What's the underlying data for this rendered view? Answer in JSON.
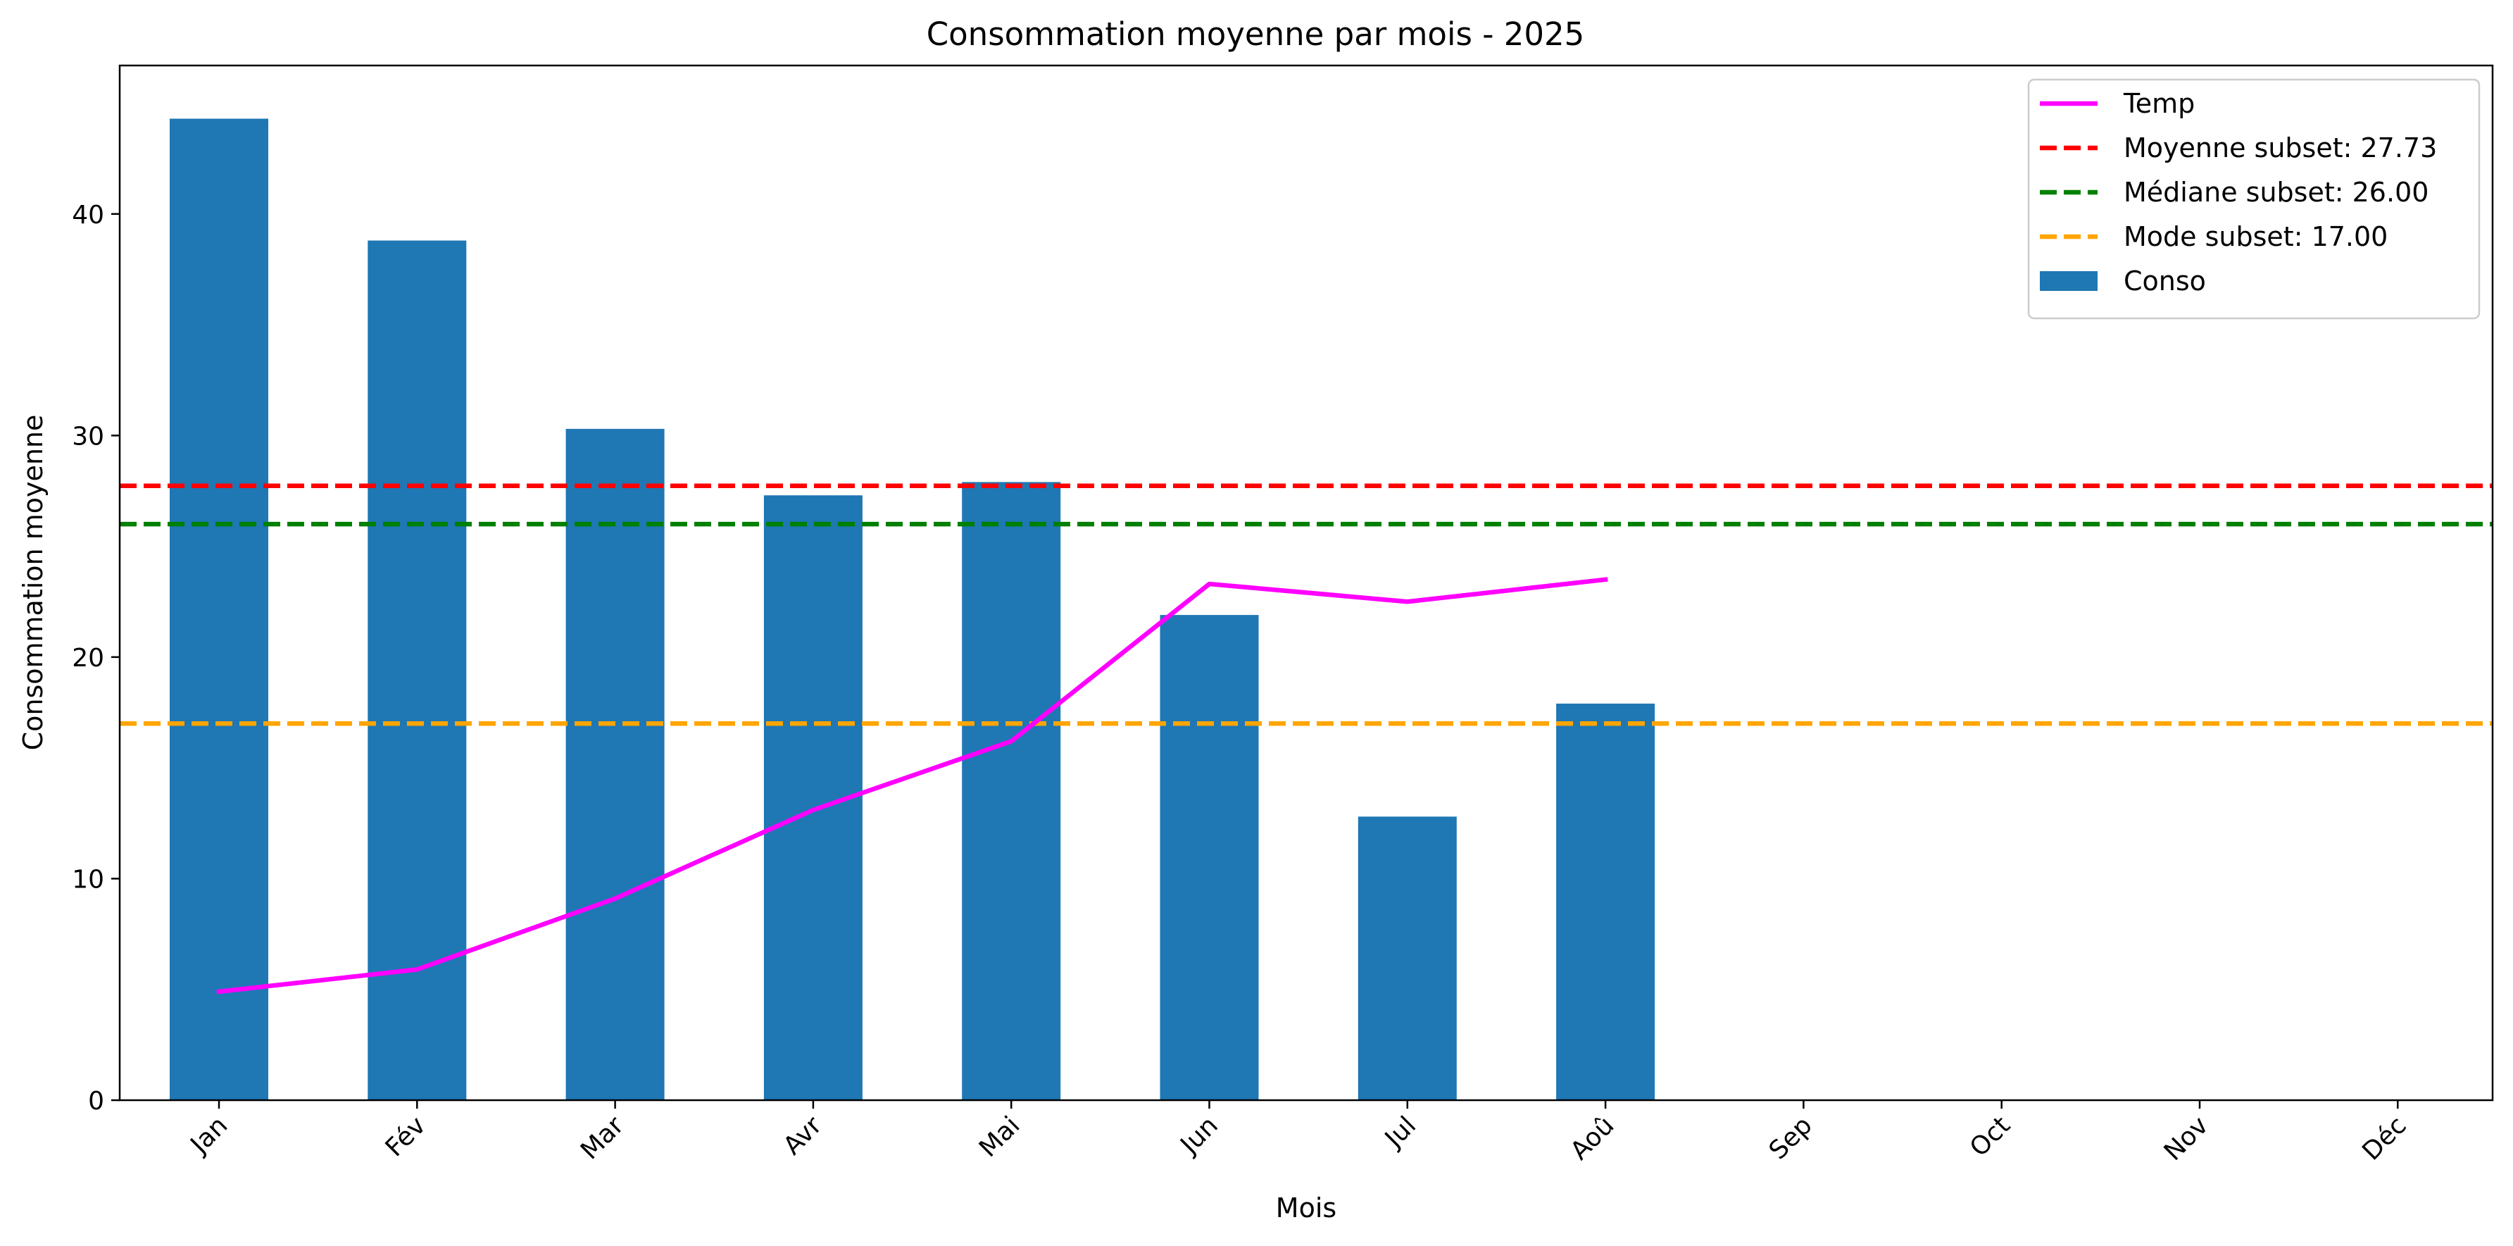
{
  "chart_data": {
    "type": "bar",
    "title": "Consommation moyenne par mois - 2025",
    "xlabel": "Mois",
    "ylabel": "Consommation moyenne",
    "categories": [
      "Jan",
      "Fév",
      "Mar",
      "Avr",
      "Mai",
      "Jun",
      "Jul",
      "Aoû",
      "Sep",
      "Oct",
      "Nov",
      "Déc"
    ],
    "ylim": [
      0,
      46.7
    ],
    "yticks": [
      0,
      10,
      20,
      30,
      40
    ],
    "grid": false,
    "legend_position": "top-right",
    "series": [
      {
        "name": "Conso",
        "type": "bar",
        "color": "#1f77b4",
        "values": [
          44.3,
          38.8,
          30.3,
          27.3,
          27.9,
          21.9,
          12.8,
          17.9,
          null,
          null,
          null,
          null
        ]
      },
      {
        "name": "Temp",
        "type": "line",
        "color": "#ff00ff",
        "values": [
          4.9,
          5.9,
          9.1,
          13.1,
          16.2,
          23.3,
          22.5,
          23.5,
          null,
          null,
          null,
          null
        ]
      }
    ],
    "reference_lines": [
      {
        "name": "Moyenne subset: 27.73",
        "value": 27.73,
        "color": "#ff0000",
        "style": "dashed"
      },
      {
        "name": "Médiane subset: 26.00",
        "value": 26.0,
        "color": "#008000",
        "style": "dashed"
      },
      {
        "name": "Mode subset: 17.00",
        "value": 17.0,
        "color": "#ffa500",
        "style": "dashed"
      }
    ],
    "legend_order": [
      "Temp",
      "Moyenne subset: 27.73",
      "Médiane subset: 26.00",
      "Mode subset: 17.00",
      "Conso"
    ]
  }
}
